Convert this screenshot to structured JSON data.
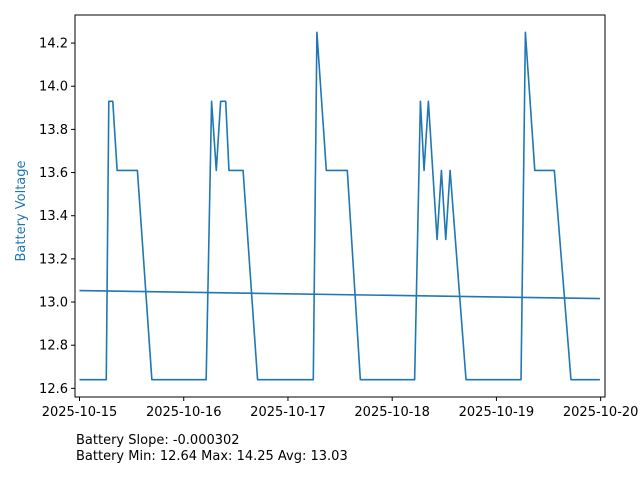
{
  "chart_data": {
    "type": "line",
    "xlabel": "",
    "ylabel": "Battery Voltage",
    "ylabel_color": "#1f77b4",
    "line_color": "#1f77b4",
    "ylim": [
      12.56,
      14.33
    ],
    "xlim": [
      "2025-10-14T22:58",
      "2025-10-20T01:00"
    ],
    "x_ticks": [
      "2025-10-15",
      "2025-10-16",
      "2025-10-17",
      "2025-10-18",
      "2025-10-19",
      "2025-10-20"
    ],
    "y_ticks": [
      "12.6",
      "12.8",
      "13.0",
      "13.2",
      "13.4",
      "13.6",
      "13.8",
      "14.0",
      "14.2"
    ],
    "grid": false,
    "series": [
      {
        "values_x": [
          "2025-10-15T00:00",
          "2025-10-15T06:10",
          "2025-10-15T06:45",
          "2025-10-15T07:40",
          "2025-10-15T08:40",
          "2025-10-15T13:20",
          "2025-10-15T16:40",
          "2025-10-16T05:10",
          "2025-10-16T06:25",
          "2025-10-16T07:30",
          "2025-10-16T08:30",
          "2025-10-16T09:40",
          "2025-10-16T10:25",
          "2025-10-16T13:40",
          "2025-10-16T17:00",
          "2025-10-17T05:50",
          "2025-10-17T06:40",
          "2025-10-17T08:50",
          "2025-10-17T13:40",
          "2025-10-17T16:40",
          "2025-10-18T05:10",
          "2025-10-18T06:30",
          "2025-10-18T07:20",
          "2025-10-18T08:20",
          "2025-10-18T10:20",
          "2025-10-18T11:20",
          "2025-10-18T12:20",
          "2025-10-18T13:20",
          "2025-10-18T17:00",
          "2025-10-19T05:40",
          "2025-10-19T06:40",
          "2025-10-19T08:50",
          "2025-10-19T13:20",
          "2025-10-19T17:10",
          "2025-10-19T23:50"
        ],
        "values": [
          12.64,
          12.64,
          13.93,
          13.93,
          13.61,
          13.61,
          12.64,
          12.64,
          13.93,
          13.61,
          13.93,
          13.93,
          13.61,
          13.61,
          12.64,
          12.64,
          14.25,
          13.61,
          13.61,
          12.64,
          12.64,
          13.93,
          13.61,
          13.93,
          13.29,
          13.61,
          13.29,
          13.61,
          12.64,
          12.64,
          14.25,
          13.61,
          13.61,
          12.64,
          12.64
        ]
      },
      {
        "values_x": [
          "2025-10-15T00:00",
          "2025-10-19T23:50"
        ],
        "values": [
          13.053,
          13.016
        ]
      }
    ]
  },
  "caption": {
    "slope_line": "Battery Slope: -0.000302",
    "stats_line": "Battery Min: 12.64 Max: 14.25 Avg: 13.03"
  }
}
